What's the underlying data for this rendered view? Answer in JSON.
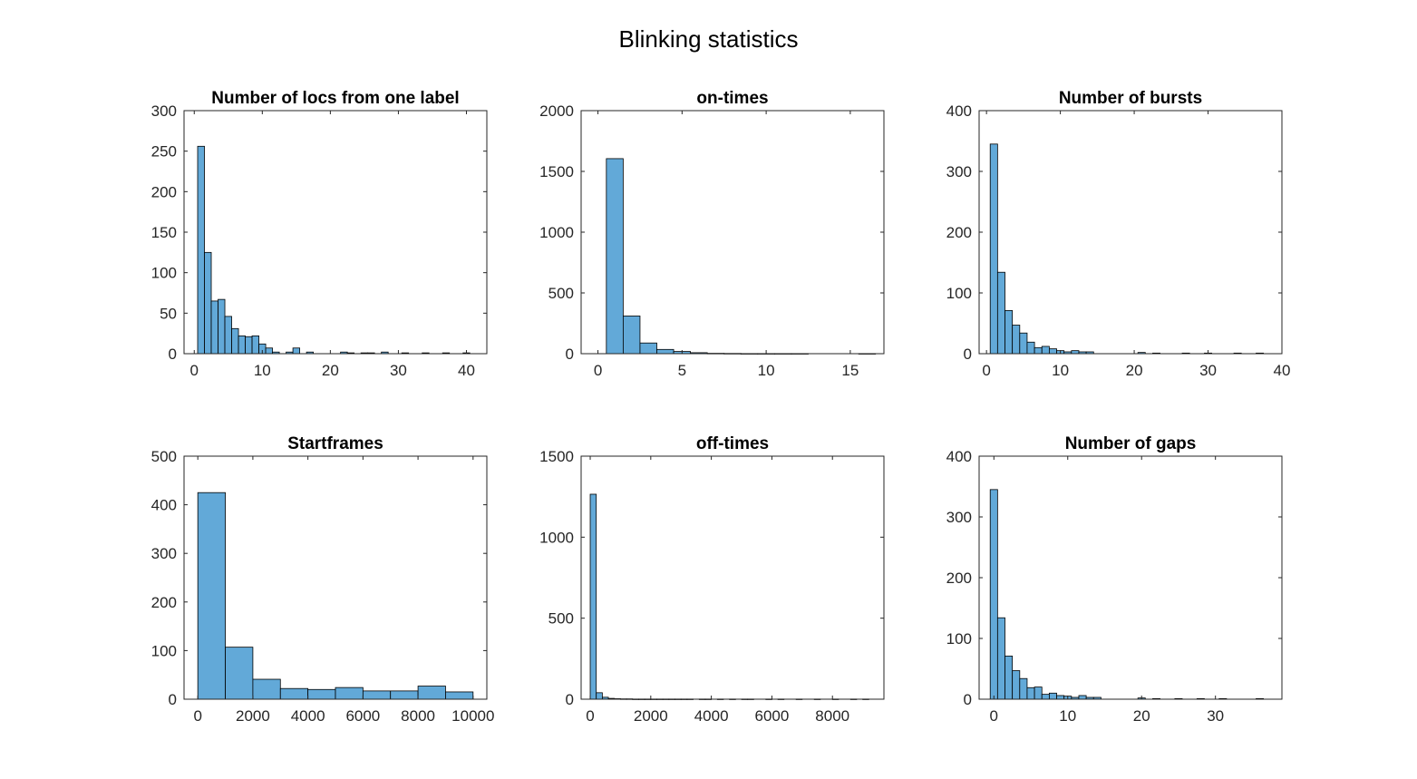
{
  "figure": {
    "title": "Blinking statistics",
    "bar_color": "#62a9d8",
    "edge_color": "#000000",
    "axis_color": "#262626"
  },
  "chart_data": [
    {
      "type": "bar",
      "title": "Number of locs from one label",
      "xlim": [
        -1.5,
        43
      ],
      "ylim": [
        0,
        300
      ],
      "xticks": [
        0,
        10,
        20,
        30,
        40
      ],
      "yticks": [
        0,
        50,
        100,
        150,
        200,
        250,
        300
      ],
      "x": [
        1,
        2,
        3,
        4,
        5,
        6,
        7,
        8,
        9,
        10,
        11,
        12,
        13,
        14,
        15,
        16,
        17,
        18,
        19,
        20,
        21,
        22,
        23,
        24,
        25,
        26,
        27,
        28,
        29,
        30,
        31,
        32,
        33,
        34,
        35,
        36,
        37,
        38,
        39,
        40,
        41
      ],
      "values": [
        256,
        125,
        65,
        67,
        46,
        31,
        22,
        21,
        22,
        12,
        7,
        2,
        0,
        2,
        7,
        0,
        2,
        0,
        0,
        0,
        0,
        2,
        1,
        0,
        1,
        1,
        0,
        2,
        0,
        0,
        1,
        0,
        0,
        1,
        0,
        0,
        1,
        0,
        0,
        1,
        0
      ]
    },
    {
      "type": "bar",
      "title": "on-times",
      "xlim": [
        -1,
        17
      ],
      "ylim": [
        0,
        2000
      ],
      "xticks": [
        0,
        5,
        10,
        15
      ],
      "yticks": [
        0,
        500,
        1000,
        1500,
        2000
      ],
      "x": [
        1,
        2,
        3,
        4,
        5,
        6,
        7,
        8,
        9,
        10,
        11,
        12,
        13,
        14,
        15,
        16
      ],
      "values": [
        1605,
        310,
        88,
        35,
        18,
        8,
        3,
        2,
        1,
        1,
        1,
        1,
        0,
        0,
        0,
        1
      ]
    },
    {
      "type": "bar",
      "title": "Number of bursts",
      "xlim": [
        -1,
        40
      ],
      "ylim": [
        0,
        400
      ],
      "xticks": [
        0,
        10,
        20,
        30,
        40
      ],
      "yticks": [
        0,
        100,
        200,
        300,
        400
      ],
      "x": [
        1,
        2,
        3,
        4,
        5,
        6,
        7,
        8,
        9,
        10,
        11,
        12,
        13,
        14,
        15,
        16,
        17,
        18,
        19,
        20,
        21,
        22,
        23,
        24,
        25,
        26,
        27,
        28,
        29,
        30,
        31,
        32,
        33,
        34,
        35,
        36,
        37
      ],
      "values": [
        345,
        134,
        71,
        47,
        34,
        19,
        10,
        12,
        8,
        5,
        3,
        5,
        3,
        3,
        0,
        0,
        0,
        0,
        0,
        0,
        2,
        0,
        1,
        0,
        0,
        0,
        1,
        0,
        0,
        1,
        0,
        0,
        0,
        1,
        0,
        0,
        1
      ]
    },
    {
      "type": "bar",
      "title": "Startframes",
      "xlim": [
        -500,
        10500
      ],
      "ylim": [
        0,
        500
      ],
      "xticks": [
        0,
        2000,
        4000,
        6000,
        8000,
        10000
      ],
      "yticks": [
        0,
        100,
        200,
        300,
        400,
        500
      ],
      "x": [
        500,
        1500,
        2500,
        3500,
        4500,
        5500,
        6500,
        7500,
        8500,
        9500
      ],
      "values": [
        425,
        107,
        41,
        22,
        20,
        24,
        17,
        17,
        27,
        15
      ]
    },
    {
      "type": "bar",
      "title": "off-times",
      "xlim": [
        -300,
        9700
      ],
      "ylim": [
        0,
        1500
      ],
      "xticks": [
        0,
        2000,
        4000,
        6000,
        8000
      ],
      "yticks": [
        0,
        500,
        1000,
        1500
      ],
      "x": [
        100,
        300,
        500,
        700,
        900,
        1100,
        1300,
        1500,
        1700,
        1900,
        2100,
        2300,
        2500,
        2700,
        2900,
        3100,
        3300,
        3500,
        3700,
        3900,
        4100,
        4300,
        4500,
        4700,
        4900,
        5100,
        5300,
        5500,
        5700,
        5900,
        6100,
        6300,
        6500,
        6700,
        6900,
        7100,
        7300,
        7500,
        7700,
        7900,
        8100,
        8300,
        8500,
        8700,
        8900,
        9100
      ],
      "values": [
        1265,
        40,
        12,
        5,
        3,
        2,
        2,
        1,
        1,
        1,
        1,
        1,
        1,
        1,
        1,
        1,
        1,
        0,
        1,
        1,
        0,
        1,
        0,
        1,
        0,
        1,
        1,
        0,
        0,
        1,
        0,
        1,
        0,
        0,
        1,
        0,
        0,
        1,
        0,
        0,
        1,
        0,
        0,
        1,
        0,
        1
      ]
    },
    {
      "type": "bar",
      "title": "Number of gaps",
      "xlim": [
        -2,
        39
      ],
      "ylim": [
        0,
        400
      ],
      "xticks": [
        0,
        10,
        20,
        30
      ],
      "yticks": [
        0,
        100,
        200,
        300,
        400
      ],
      "x": [
        0,
        1,
        2,
        3,
        4,
        5,
        6,
        7,
        8,
        9,
        10,
        11,
        12,
        13,
        14,
        15,
        16,
        17,
        18,
        19,
        20,
        21,
        22,
        23,
        24,
        25,
        26,
        27,
        28,
        29,
        30,
        31,
        32,
        33,
        34,
        35,
        36
      ],
      "values": [
        345,
        134,
        71,
        47,
        34,
        19,
        20,
        8,
        10,
        6,
        5,
        3,
        6,
        3,
        3,
        0,
        0,
        0,
        0,
        0,
        2,
        0,
        1,
        0,
        0,
        1,
        0,
        0,
        1,
        0,
        0,
        1,
        0,
        0,
        0,
        0,
        1
      ]
    }
  ]
}
